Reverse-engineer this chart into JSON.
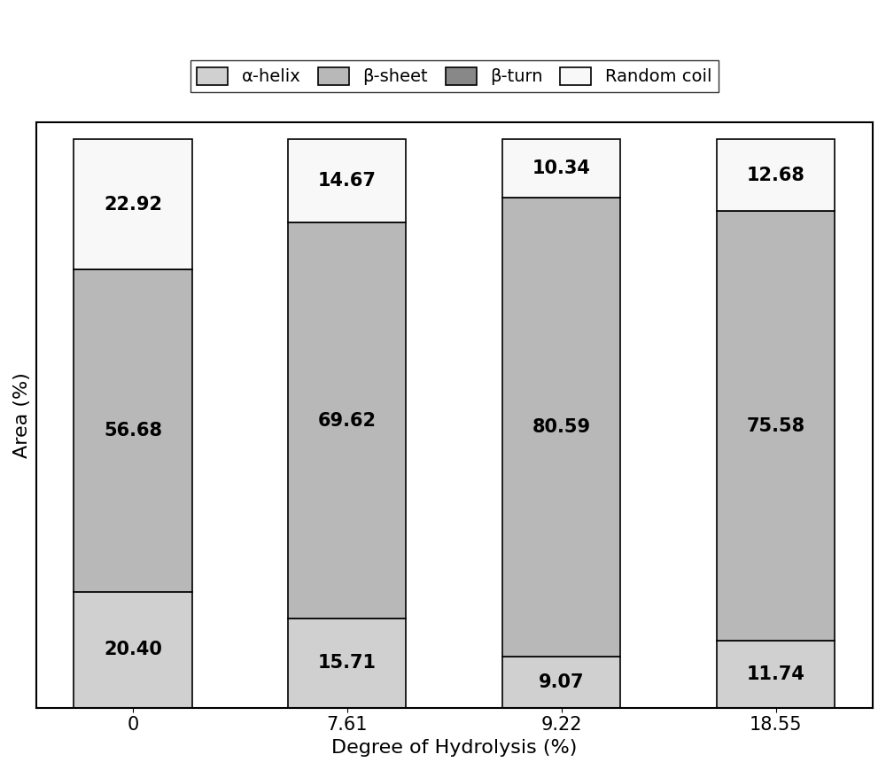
{
  "categories": [
    "0",
    "7.61",
    "9.22",
    "18.55"
  ],
  "alpha_helix": [
    20.4,
    15.71,
    9.07,
    11.74
  ],
  "beta_sheet": [
    56.68,
    69.62,
    80.59,
    75.58
  ],
  "beta_turn": [
    0.0,
    0.0,
    0.0,
    0.0
  ],
  "random_coil": [
    22.92,
    14.67,
    10.34,
    12.68
  ],
  "color_alpha_helix": "#d0d0d0",
  "color_beta_sheet": "#b8b8b8",
  "color_beta_turn": "#888888",
  "color_random_coil": "#f8f8f8",
  "xlabel": "Degree of Hydrolysis (%)",
  "ylabel": "Area (%)",
  "legend_labels": [
    "α-helix",
    "β-sheet",
    "β-turn",
    "Random coil"
  ],
  "bar_width": 0.55,
  "label_fontsize": 16,
  "tick_fontsize": 15,
  "value_fontsize": 15,
  "legend_fontsize": 14,
  "edgecolor": "#000000"
}
